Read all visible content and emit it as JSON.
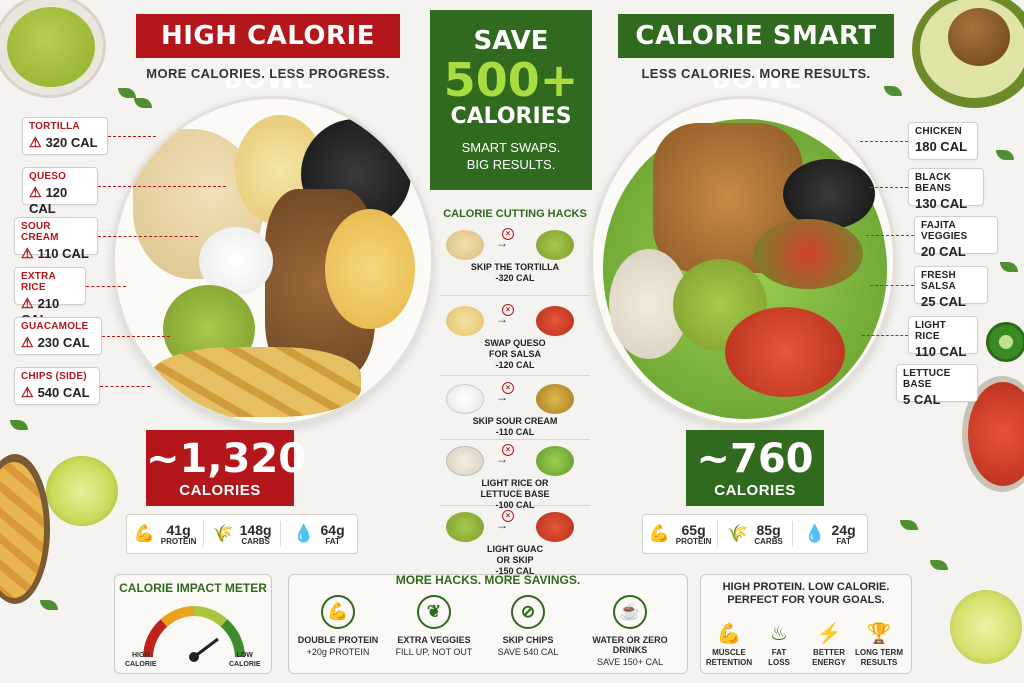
{
  "left": {
    "title": "HIGH CALORIE BOWL",
    "tagline": "MORE CALORIES. LESS PROGRESS.",
    "labels": [
      {
        "name": "TORTILLA",
        "cal": "320 CAL"
      },
      {
        "name": "QUESO",
        "cal": "120 CAL"
      },
      {
        "name": "SOUR CREAM",
        "cal": "110 CAL"
      },
      {
        "name": "EXTRA RICE",
        "cal": "210 CAL"
      },
      {
        "name": "GUACAMOLE",
        "cal": "230 CAL"
      },
      {
        "name": "CHIPS (SIDE)",
        "cal": "540 CAL"
      }
    ],
    "total": "~1,320",
    "total_unit": "CALORIES",
    "macros": [
      {
        "value": "41g",
        "name": "PROTEIN",
        "icon": "muscle-icon"
      },
      {
        "value": "148g",
        "name": "CARBS",
        "icon": "wheat-icon"
      },
      {
        "value": "64g",
        "name": "FAT",
        "icon": "drop-icon"
      }
    ]
  },
  "center": {
    "save": "SAVE",
    "amount": "500+",
    "calories": "CALORIES",
    "sub1": "SMART SWAPS.",
    "sub2": "BIG RESULTS.",
    "hacks_title": "CALORIE CUTTING HACKS",
    "hacks": [
      {
        "line1": "SKIP THE TORTILLA",
        "line2": "-320 CAL"
      },
      {
        "line1": "SWAP QUESO",
        "line2": "FOR SALSA",
        "line3": "-120 CAL"
      },
      {
        "line1": "SKIP SOUR CREAM",
        "line2": "-110 CAL"
      },
      {
        "line1": "LIGHT RICE OR",
        "line2": "LETTUCE BASE",
        "line3": "-100 CAL"
      },
      {
        "line1": "LIGHT GUAC",
        "line2": "OR SKIP",
        "line3": "-150 CAL"
      }
    ]
  },
  "right": {
    "title": "CALORIE SMART BOWL",
    "tagline": "LESS CALORIES. MORE RESULTS.",
    "labels": [
      {
        "name": "CHICKEN",
        "cal": "180 CAL"
      },
      {
        "name": "BLACK BEANS",
        "cal": "130 CAL"
      },
      {
        "name": "FAJITA VEGGIES",
        "cal": "20 CAL"
      },
      {
        "name": "FRESH SALSA",
        "cal": "25 CAL"
      },
      {
        "name": "LIGHT RICE",
        "cal": "110 CAL"
      },
      {
        "name": "LETTUCE BASE",
        "cal": "5 CAL"
      }
    ],
    "total": "~760",
    "total_unit": "CALORIES",
    "macros": [
      {
        "value": "65g",
        "name": "PROTEIN",
        "icon": "muscle-icon"
      },
      {
        "value": "85g",
        "name": "CARBS",
        "icon": "wheat-icon"
      },
      {
        "value": "24g",
        "name": "FAT",
        "icon": "drop-icon"
      }
    ]
  },
  "meter": {
    "title": "CALORIE IMPACT METER",
    "high": "HIGH",
    "high2": "CALORIE",
    "low": "LOW",
    "low2": "CALORIE"
  },
  "more_hacks": {
    "title": "MORE HACKS. MORE SAVINGS.",
    "items": [
      {
        "title": "DOUBLE PROTEIN",
        "sub": "+20g PROTEIN",
        "icon": "muscle-icon"
      },
      {
        "title": "EXTRA VEGGIES",
        "sub": "FILL UP, NOT OUT",
        "icon": "veggie-icon"
      },
      {
        "title": "SKIP CHIPS",
        "sub": "SAVE 540 CAL",
        "icon": "no-chips-icon"
      },
      {
        "title": "WATER OR ZERO DRINKS",
        "sub": "SAVE 150+ CAL",
        "icon": "cup-icon"
      }
    ]
  },
  "goals": {
    "title1": "HIGH PROTEIN. LOW CALORIE.",
    "title2": "PERFECT FOR YOUR GOALS.",
    "items": [
      {
        "l1": "MUSCLE",
        "l2": "RETENTION",
        "icon": "muscle-icon"
      },
      {
        "l1": "FAT",
        "l2": "LOSS",
        "icon": "flame-icon"
      },
      {
        "l1": "BETTER",
        "l2": "ENERGY",
        "icon": "bolt-icon"
      },
      {
        "l1": "LONG TERM",
        "l2": "RESULTS",
        "icon": "trophy-icon"
      }
    ]
  },
  "colors": {
    "red": "#b3171c",
    "green": "#2f6a1e",
    "lime": "#a9dc3f"
  }
}
